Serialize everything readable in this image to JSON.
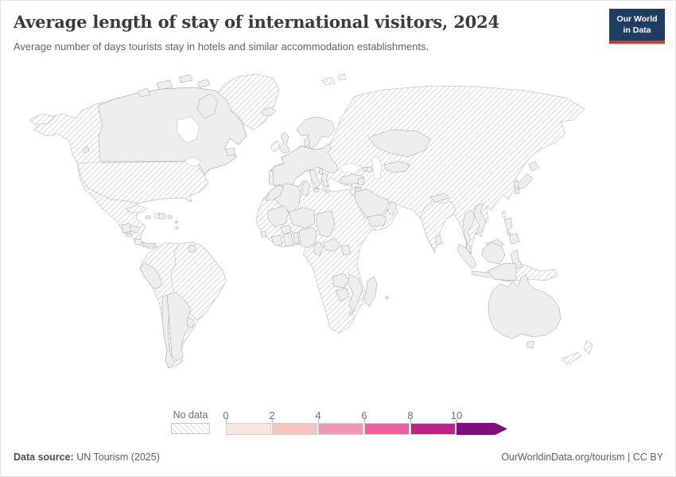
{
  "header": {
    "title": "Average length of stay of international visitors, 2024",
    "subtitle": "Average number of days tourists stay in hotels and similar accommodation establishments.",
    "logo": {
      "line1": "Our World",
      "line2": "in Data"
    }
  },
  "legend": {
    "no_data_label": "No data",
    "ticks": [
      "0",
      "2",
      "4",
      "6",
      "8",
      "10"
    ]
  },
  "footer": {
    "source_label": "Data source:",
    "source_text": " UN Tourism (2025)",
    "link_text": "OurWorldinData.org/tourism",
    "separator": " | ",
    "license_text": "CC BY"
  },
  "colors": {
    "logo_bg": "#1d3d63",
    "logo_accent": "#d73a22",
    "hatch_line": "#dadada",
    "country_border": "#9c9c9c"
  },
  "chart_data": {
    "type": "choropleth_map",
    "title": "Average length of stay of international visitors, 2024",
    "unit": "days",
    "year": 2024,
    "legend_position": "bottom",
    "no_data_style": "diagonal-hatch",
    "bins": [
      {
        "id": "bin1",
        "range": "0-2",
        "color": "#fae6de"
      },
      {
        "id": "bin2",
        "range": "2-4",
        "color": "#f8c3ba"
      },
      {
        "id": "bin3",
        "range": "4-6",
        "color": "#f396b3"
      },
      {
        "id": "bin4",
        "range": "6-8",
        "color": "#ef5f9e"
      },
      {
        "id": "bin5",
        "range": "8-10",
        "color": "#c2218c"
      },
      {
        "id": "bin6",
        "range": "10+",
        "color": "#7f0d7f"
      }
    ],
    "countries": [
      {
        "name": "Iceland",
        "id": "iceland",
        "bin": "bin1"
      },
      {
        "name": "Norway",
        "id": "scandinavia",
        "bin": "bin1"
      },
      {
        "name": "Sweden",
        "id": "scandinavia",
        "bin": "bin1"
      },
      {
        "name": "Finland",
        "id": "scandinavia",
        "bin": "bin1"
      },
      {
        "name": "Kazakhstan",
        "id": "kazakhstan",
        "bin": "bin1"
      },
      {
        "name": "Syria",
        "id": "syria",
        "bin": "bin1"
      },
      {
        "name": "Jordan",
        "id": "jordan",
        "bin": "bin1"
      },
      {
        "name": "Algeria",
        "id": "algeria",
        "bin": "bin1"
      },
      {
        "name": "Mali",
        "id": "mali",
        "bin": "bin1"
      },
      {
        "name": "Niger",
        "id": "niger",
        "bin": "bin1"
      },
      {
        "name": "Chad",
        "id": "chad",
        "bin": "bin1"
      },
      {
        "name": "Cote d'Ivoire",
        "id": "cotedivoire",
        "bin": "bin1"
      },
      {
        "name": "Togo",
        "id": "benin",
        "bin": "bin1"
      },
      {
        "name": "Benin",
        "id": "benin",
        "bin": "bin1"
      },
      {
        "name": "Cameroon",
        "id": "cameroon",
        "bin": "bin1"
      },
      {
        "name": "Central African Republic",
        "id": "car",
        "bin": "bin1"
      },
      {
        "name": "Mozambique",
        "id": "mozambique",
        "bin": "bin1"
      },
      {
        "name": "Peru",
        "id": "peru",
        "bin": "bin1"
      },
      {
        "name": "Japan",
        "id": "japan",
        "bin": "bin1"
      },
      {
        "name": "South Korea",
        "id": "southkorea",
        "bin": "bin1"
      },
      {
        "name": "Malaysia",
        "id": "malaysia",
        "bin": "bin1"
      },
      {
        "name": "Indonesia",
        "id": "indonesia",
        "bin": "bin1"
      },
      {
        "name": "Canada",
        "id": "canada",
        "bin": "bin2"
      },
      {
        "name": "Guatemala",
        "id": "guatemala",
        "bin": "bin2"
      },
      {
        "name": "Honduras",
        "id": "honduras",
        "bin": "bin2"
      },
      {
        "name": "Chile",
        "id": "chile",
        "bin": "bin2"
      },
      {
        "name": "Argentina",
        "id": "argentina",
        "bin": "bin2"
      },
      {
        "name": "Spain",
        "id": "europe",
        "bin": "bin2"
      },
      {
        "name": "France",
        "id": "europe",
        "bin": "bin2"
      },
      {
        "name": "Germany",
        "id": "europe",
        "bin": "bin2"
      },
      {
        "name": "Poland",
        "id": "europe",
        "bin": "bin2"
      },
      {
        "name": "Romania",
        "id": "europe",
        "bin": "bin2"
      },
      {
        "name": "Bulgaria",
        "id": "europe",
        "bin": "bin2"
      },
      {
        "name": "Italy",
        "id": "italy",
        "bin": "bin2"
      },
      {
        "name": "Denmark",
        "id": "denmark",
        "bin": "bin2"
      },
      {
        "name": "Morocco",
        "id": "morocco",
        "bin": "bin2"
      },
      {
        "name": "Turkey",
        "id": "turkey",
        "bin": "bin2"
      },
      {
        "name": "Azerbaijan",
        "id": "azerbaijan",
        "bin": "bin2"
      },
      {
        "name": "Uzbekistan",
        "id": "uzbekistan",
        "bin": "bin2"
      },
      {
        "name": "Oman",
        "id": "oman",
        "bin": "bin2"
      },
      {
        "name": "Burkina Faso",
        "id": "burkinafaso",
        "bin": "bin2"
      },
      {
        "name": "Zambia",
        "id": "zambia",
        "bin": "bin2"
      },
      {
        "name": "Zimbabwe",
        "id": "zimbabwe",
        "bin": "bin2"
      },
      {
        "name": "Thailand",
        "id": "thailand",
        "bin": "bin2"
      },
      {
        "name": "Australia",
        "id": "australia",
        "bin": "bin2"
      },
      {
        "name": "United Kingdom",
        "id": "uk",
        "bin": "bin3"
      },
      {
        "name": "Portugal",
        "id": "portugal",
        "bin": "bin3"
      },
      {
        "name": "Greece",
        "id": "greece",
        "bin": "bin3"
      },
      {
        "name": "Albania",
        "id": "albania",
        "bin": "bin3"
      },
      {
        "name": "Tunisia",
        "id": "tunisia",
        "bin": "bin3"
      },
      {
        "name": "Sierra Leone",
        "id": "sierraleone",
        "bin": "bin3"
      },
      {
        "name": "Yemen",
        "id": "yemen",
        "bin": "bin3"
      },
      {
        "name": "Suriname",
        "id": "suriname",
        "bin": "bin3"
      },
      {
        "name": "Uruguay",
        "id": "uruguay",
        "bin": "bin3"
      },
      {
        "name": "Panama",
        "id": "panama",
        "bin": "bin3"
      },
      {
        "name": "Philippines",
        "id": "philippines",
        "bin": "bin3"
      },
      {
        "name": "Cyprus",
        "id": "cyprus",
        "bin": "bin3"
      },
      {
        "name": "Eswatini",
        "id": "eswatini",
        "bin": "bin3"
      },
      {
        "name": "Saudi Arabia",
        "id": "saudiarabia",
        "bin": "bin4"
      },
      {
        "name": "Nigeria",
        "id": "nigeria",
        "bin": "bin4"
      },
      {
        "name": "Vietnam",
        "id": "vietnam",
        "bin": "bin4"
      },
      {
        "name": "Dominican Republic",
        "id": "dominicanrepublic",
        "bin": "bin5"
      },
      {
        "name": "Jamaica",
        "id": "jamaica",
        "bin": "bin5"
      },
      {
        "name": "Puerto Rico",
        "id": "puertorico",
        "bin": "bin5"
      },
      {
        "name": "El Salvador",
        "id": "elsalvador",
        "bin": "bin5"
      },
      {
        "name": "Uganda",
        "id": "uganda",
        "bin": "bin5"
      },
      {
        "name": "Sri Lanka",
        "id": "srilanka",
        "bin": "bin5"
      },
      {
        "name": "Mauritius",
        "id": "mauritius",
        "bin": "bin5"
      },
      {
        "name": "Costa Rica",
        "id": "costarica",
        "bin": "bin6"
      },
      {
        "name": "Ghana",
        "id": "ghana",
        "bin": "bin6"
      },
      {
        "name": "Madagascar",
        "id": "madagascar",
        "bin": "bin6"
      },
      {
        "name": "Nepal",
        "id": "nepal",
        "bin": "bin6"
      },
      {
        "name": "Armenia",
        "id": "armenia",
        "bin": "bin6"
      }
    ],
    "no_data_countries": [
      "United States",
      "Mexico",
      "Cuba",
      "Haiti",
      "Greenland",
      "Ireland",
      "Brazil",
      "Colombia",
      "Venezuela",
      "Bolivia",
      "Ecuador",
      "Paraguay",
      "Russia",
      "Ukraine",
      "Belarus",
      "China",
      "India",
      "Mongolia",
      "Iran",
      "Iraq",
      "Egypt",
      "Libya",
      "Sudan",
      "Ethiopia",
      "Kenya",
      "DR Congo",
      "Angola",
      "Namibia",
      "Botswana",
      "South Africa",
      "Mauritania",
      "Senegal",
      "Guinea",
      "Myanmar",
      "Bangladesh",
      "Pakistan",
      "Afghanistan",
      "Papua New Guinea",
      "New Zealand",
      "Taiwan",
      "North Korea"
    ]
  }
}
